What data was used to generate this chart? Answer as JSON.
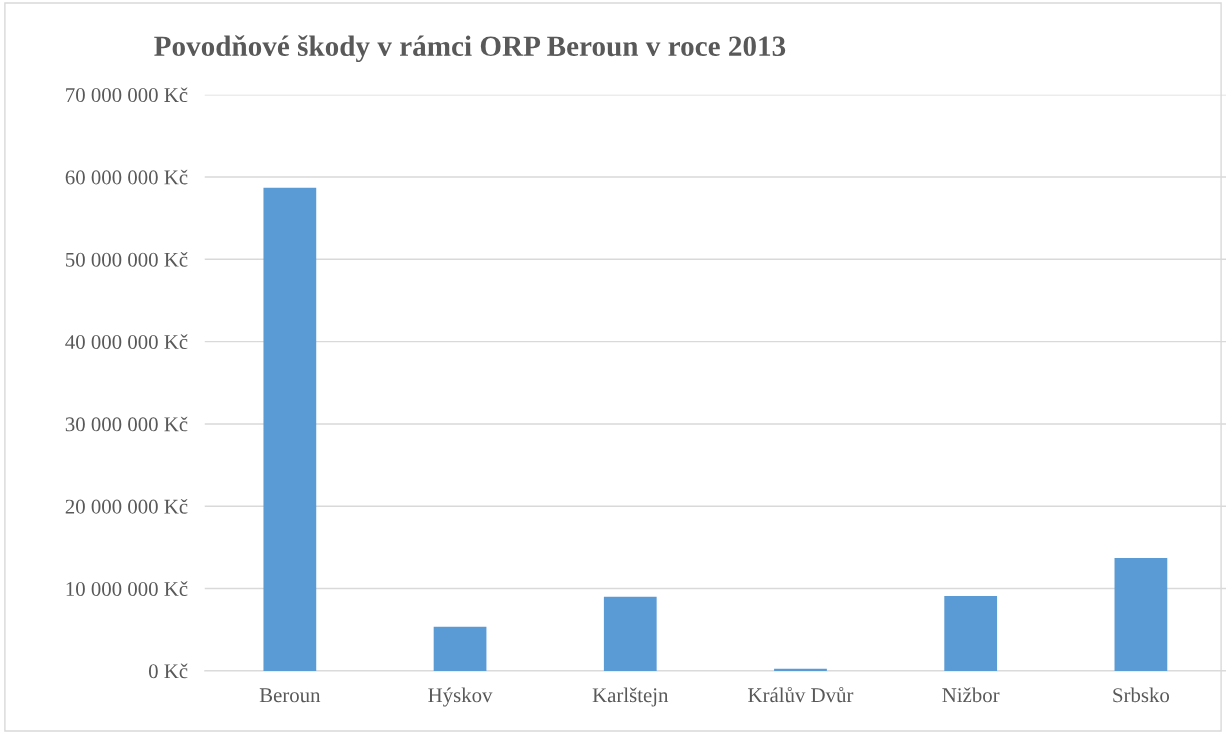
{
  "chart_data": {
    "type": "bar",
    "title": "Povodňové škody v rámci ORP Beroun v roce 2013",
    "categories": [
      "Beroun",
      "Hýskov",
      "Karlštejn",
      "Králův Dvůr",
      "Nižbor",
      "Srbsko"
    ],
    "values": [
      58700000,
      5350000,
      9000000,
      250000,
      9100000,
      13700000
    ],
    "color": "#5b9bd5",
    "ylim": [
      0,
      70000000
    ],
    "yticks": [
      {
        "value": 0,
        "label": "0 Kč"
      },
      {
        "value": 10000000,
        "label": "10 000 000 Kč"
      },
      {
        "value": 20000000,
        "label": "20 000 000 Kč"
      },
      {
        "value": 30000000,
        "label": "30 000 000 Kč"
      },
      {
        "value": 40000000,
        "label": "40 000 000 Kč"
      },
      {
        "value": 50000000,
        "label": "50 000 000 Kč"
      },
      {
        "value": 60000000,
        "label": "60 000 000 Kč"
      },
      {
        "value": 70000000,
        "label": "70 000 000 Kč"
      }
    ],
    "grid": "y"
  }
}
